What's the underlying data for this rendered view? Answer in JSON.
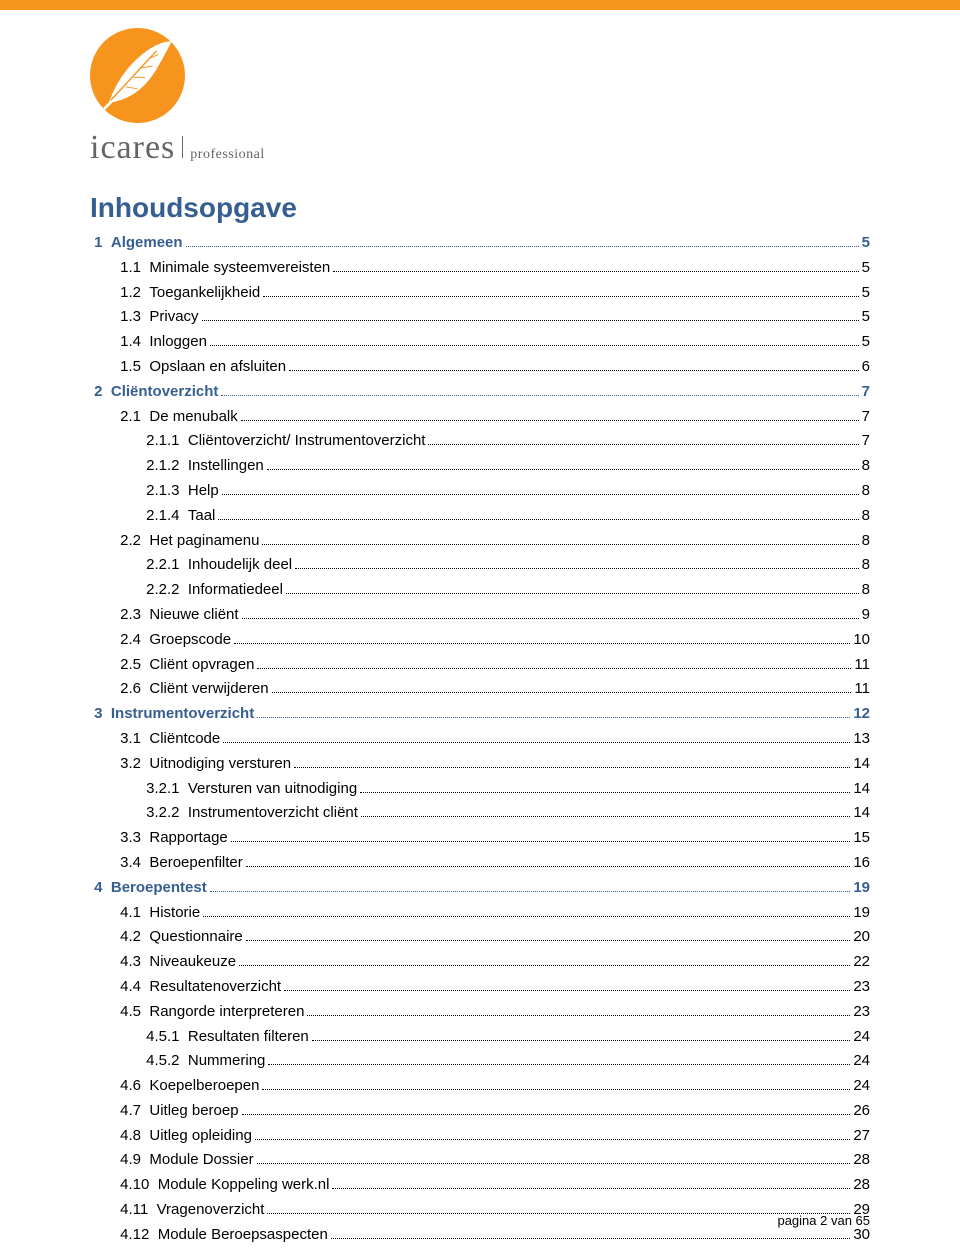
{
  "logo": {
    "brand": "icares",
    "sub": "professional",
    "circle_bg": "#f7941e",
    "feather_fill": "#ffffff",
    "text_color": "#646569"
  },
  "accent_color": "#365f91",
  "text_color": "#000000",
  "title": "Inhoudsopgave",
  "toc": [
    {
      "level": 1,
      "num": "1",
      "label": "Algemeen",
      "page": 5
    },
    {
      "level": 2,
      "num": "1.1",
      "label": "Minimale systeemvereisten",
      "page": 5
    },
    {
      "level": 2,
      "num": "1.2",
      "label": "Toegankelijkheid",
      "page": 5
    },
    {
      "level": 2,
      "num": "1.3",
      "label": "Privacy",
      "page": 5
    },
    {
      "level": 2,
      "num": "1.4",
      "label": "Inloggen",
      "page": 5
    },
    {
      "level": 2,
      "num": "1.5",
      "label": "Opslaan en afsluiten",
      "page": 6
    },
    {
      "level": 1,
      "num": "2",
      "label": "Cliëntoverzicht",
      "page": 7
    },
    {
      "level": 2,
      "num": "2.1",
      "label": "De menubalk",
      "page": 7
    },
    {
      "level": 3,
      "num": "2.1.1",
      "label": "Cliëntoverzicht/ Instrumentoverzicht",
      "page": 7
    },
    {
      "level": 3,
      "num": "2.1.2",
      "label": "Instellingen",
      "page": 8
    },
    {
      "level": 3,
      "num": "2.1.3",
      "label": "Help",
      "page": 8
    },
    {
      "level": 3,
      "num": "2.1.4",
      "label": "Taal",
      "page": 8
    },
    {
      "level": 2,
      "num": "2.2",
      "label": "Het paginamenu",
      "page": 8
    },
    {
      "level": 3,
      "num": "2.2.1",
      "label": "Inhoudelijk deel",
      "page": 8
    },
    {
      "level": 3,
      "num": "2.2.2",
      "label": "Informatiedeel",
      "page": 8
    },
    {
      "level": 2,
      "num": "2.3",
      "label": "Nieuwe cliënt",
      "page": 9
    },
    {
      "level": 2,
      "num": "2.4",
      "label": "Groepscode",
      "page": 10
    },
    {
      "level": 2,
      "num": "2.5",
      "label": "Cliënt opvragen",
      "page": 11
    },
    {
      "level": 2,
      "num": "2.6",
      "label": "Cliënt verwijderen",
      "page": 11
    },
    {
      "level": 1,
      "num": "3",
      "label": "Instrumentoverzicht",
      "page": 12
    },
    {
      "level": 2,
      "num": "3.1",
      "label": "Cliëntcode",
      "page": 13
    },
    {
      "level": 2,
      "num": "3.2",
      "label": "Uitnodiging versturen",
      "page": 14
    },
    {
      "level": 3,
      "num": "3.2.1",
      "label": "Versturen van uitnodiging",
      "page": 14
    },
    {
      "level": 3,
      "num": "3.2.2",
      "label": "Instrumentoverzicht cliënt",
      "page": 14
    },
    {
      "level": 2,
      "num": "3.3",
      "label": "Rapportage",
      "page": 15
    },
    {
      "level": 2,
      "num": "3.4",
      "label": "Beroepenfilter",
      "page": 16
    },
    {
      "level": 1,
      "num": "4",
      "label": "Beroepentest",
      "page": 19
    },
    {
      "level": 2,
      "num": "4.1",
      "label": "Historie",
      "page": 19
    },
    {
      "level": 2,
      "num": "4.2",
      "label": "Questionnaire",
      "page": 20
    },
    {
      "level": 2,
      "num": "4.3",
      "label": "Niveaukeuze",
      "page": 22
    },
    {
      "level": 2,
      "num": "4.4",
      "label": "Resultatenoverzicht",
      "page": 23
    },
    {
      "level": 2,
      "num": "4.5",
      "label": "Rangorde interpreteren",
      "page": 23
    },
    {
      "level": 3,
      "num": "4.5.1",
      "label": "Resultaten filteren",
      "page": 24
    },
    {
      "level": 3,
      "num": "4.5.2",
      "label": "Nummering",
      "page": 24
    },
    {
      "level": 2,
      "num": "4.6",
      "label": "Koepelberoepen",
      "page": 24
    },
    {
      "level": 2,
      "num": "4.7",
      "label": "Uitleg beroep",
      "page": 26
    },
    {
      "level": 2,
      "num": "4.8",
      "label": "Uitleg opleiding",
      "page": 27
    },
    {
      "level": 2,
      "num": "4.9",
      "label": "Module Dossier",
      "page": 28
    },
    {
      "level": 2,
      "num": "4.10",
      "label": "Module Koppeling werk.nl",
      "page": 28
    },
    {
      "level": 2,
      "num": "4.11",
      "label": "Vragenoverzicht",
      "page": 29
    },
    {
      "level": 2,
      "num": "4.12",
      "label": "Module Beroepsaspecten",
      "page": 30
    }
  ],
  "footer": "pagina 2 van 65"
}
